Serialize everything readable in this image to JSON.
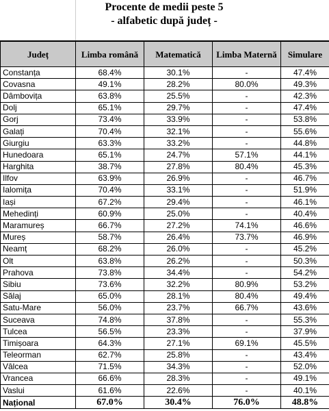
{
  "title": {
    "line1": "Procente de medii peste 5",
    "line2": "- alfabetic după județ -"
  },
  "table": {
    "header": [
      "Județ",
      "Limba română",
      "Matematică",
      "Limba Maternă",
      "Simulare"
    ],
    "rows": [
      [
        "Constanța",
        "68.4%",
        "30.1%",
        "-",
        "47.4%"
      ],
      [
        "Covasna",
        "49.1%",
        "28.2%",
        "80.0%",
        "49.3%"
      ],
      [
        "Dâmbovița",
        "63.8%",
        "25.5%",
        "-",
        "42.3%"
      ],
      [
        "Dolj",
        "65.1%",
        "29.7%",
        "-",
        "47.4%"
      ],
      [
        "Gorj",
        "73.4%",
        "33.9%",
        "-",
        "53.8%"
      ],
      [
        "Galați",
        "70.4%",
        "32.1%",
        "-",
        "55.6%"
      ],
      [
        "Giurgiu",
        "63.3%",
        "33.2%",
        "-",
        "44.8%"
      ],
      [
        "Hunedoara",
        "65.1%",
        "24.7%",
        "57.1%",
        "44.1%"
      ],
      [
        "Harghita",
        "38.7%",
        "27.8%",
        "80.4%",
        "45.3%"
      ],
      [
        "Ilfov",
        "63.9%",
        "26.9%",
        "-",
        "46.7%"
      ],
      [
        "Ialomița",
        "70.4%",
        "33.1%",
        "-",
        "51.9%"
      ],
      [
        "Iași",
        "67.2%",
        "29.4%",
        "-",
        "46.1%"
      ],
      [
        "Mehedinți",
        "60.9%",
        "25.0%",
        "-",
        "40.4%"
      ],
      [
        "Maramureș",
        "66.7%",
        "27.2%",
        "74.1%",
        "46.6%"
      ],
      [
        "Mureș",
        "58.7%",
        "26.4%",
        "73.7%",
        "46.9%"
      ],
      [
        "Neamț",
        "68.2%",
        "26.0%",
        "-",
        "45.2%"
      ],
      [
        "Olt",
        "63.8%",
        "26.2%",
        "-",
        "50.3%"
      ],
      [
        "Prahova",
        "73.8%",
        "34.4%",
        "-",
        "54.2%"
      ],
      [
        "Sibiu",
        "73.6%",
        "32.2%",
        "80.9%",
        "53.2%"
      ],
      [
        "Sălaj",
        "65.0%",
        "28.1%",
        "80.4%",
        "49.4%"
      ],
      [
        "Satu-Mare",
        "56.0%",
        "23.7%",
        "66.7%",
        "43.6%"
      ],
      [
        "Suceava",
        "74.8%",
        "37.8%",
        "-",
        "55.3%"
      ],
      [
        "Tulcea",
        "56.5%",
        "23.3%",
        "-",
        "37.9%"
      ],
      [
        "Timișoara",
        "64.3%",
        "27.1%",
        "69.1%",
        "45.5%"
      ],
      [
        "Teleorman",
        "62.7%",
        "25.8%",
        "-",
        "43.4%"
      ],
      [
        "Vâlcea",
        "71.5%",
        "34.3%",
        "-",
        "52.0%"
      ],
      [
        "Vrancea",
        "66.6%",
        "28.3%",
        "-",
        "49.1%"
      ],
      [
        "Vaslui",
        "61.6%",
        "22.6%",
        "-",
        "40.1%"
      ]
    ],
    "footer": [
      "Național",
      "67.0%",
      "30.4%",
      "76.0%",
      "48.8%"
    ]
  }
}
